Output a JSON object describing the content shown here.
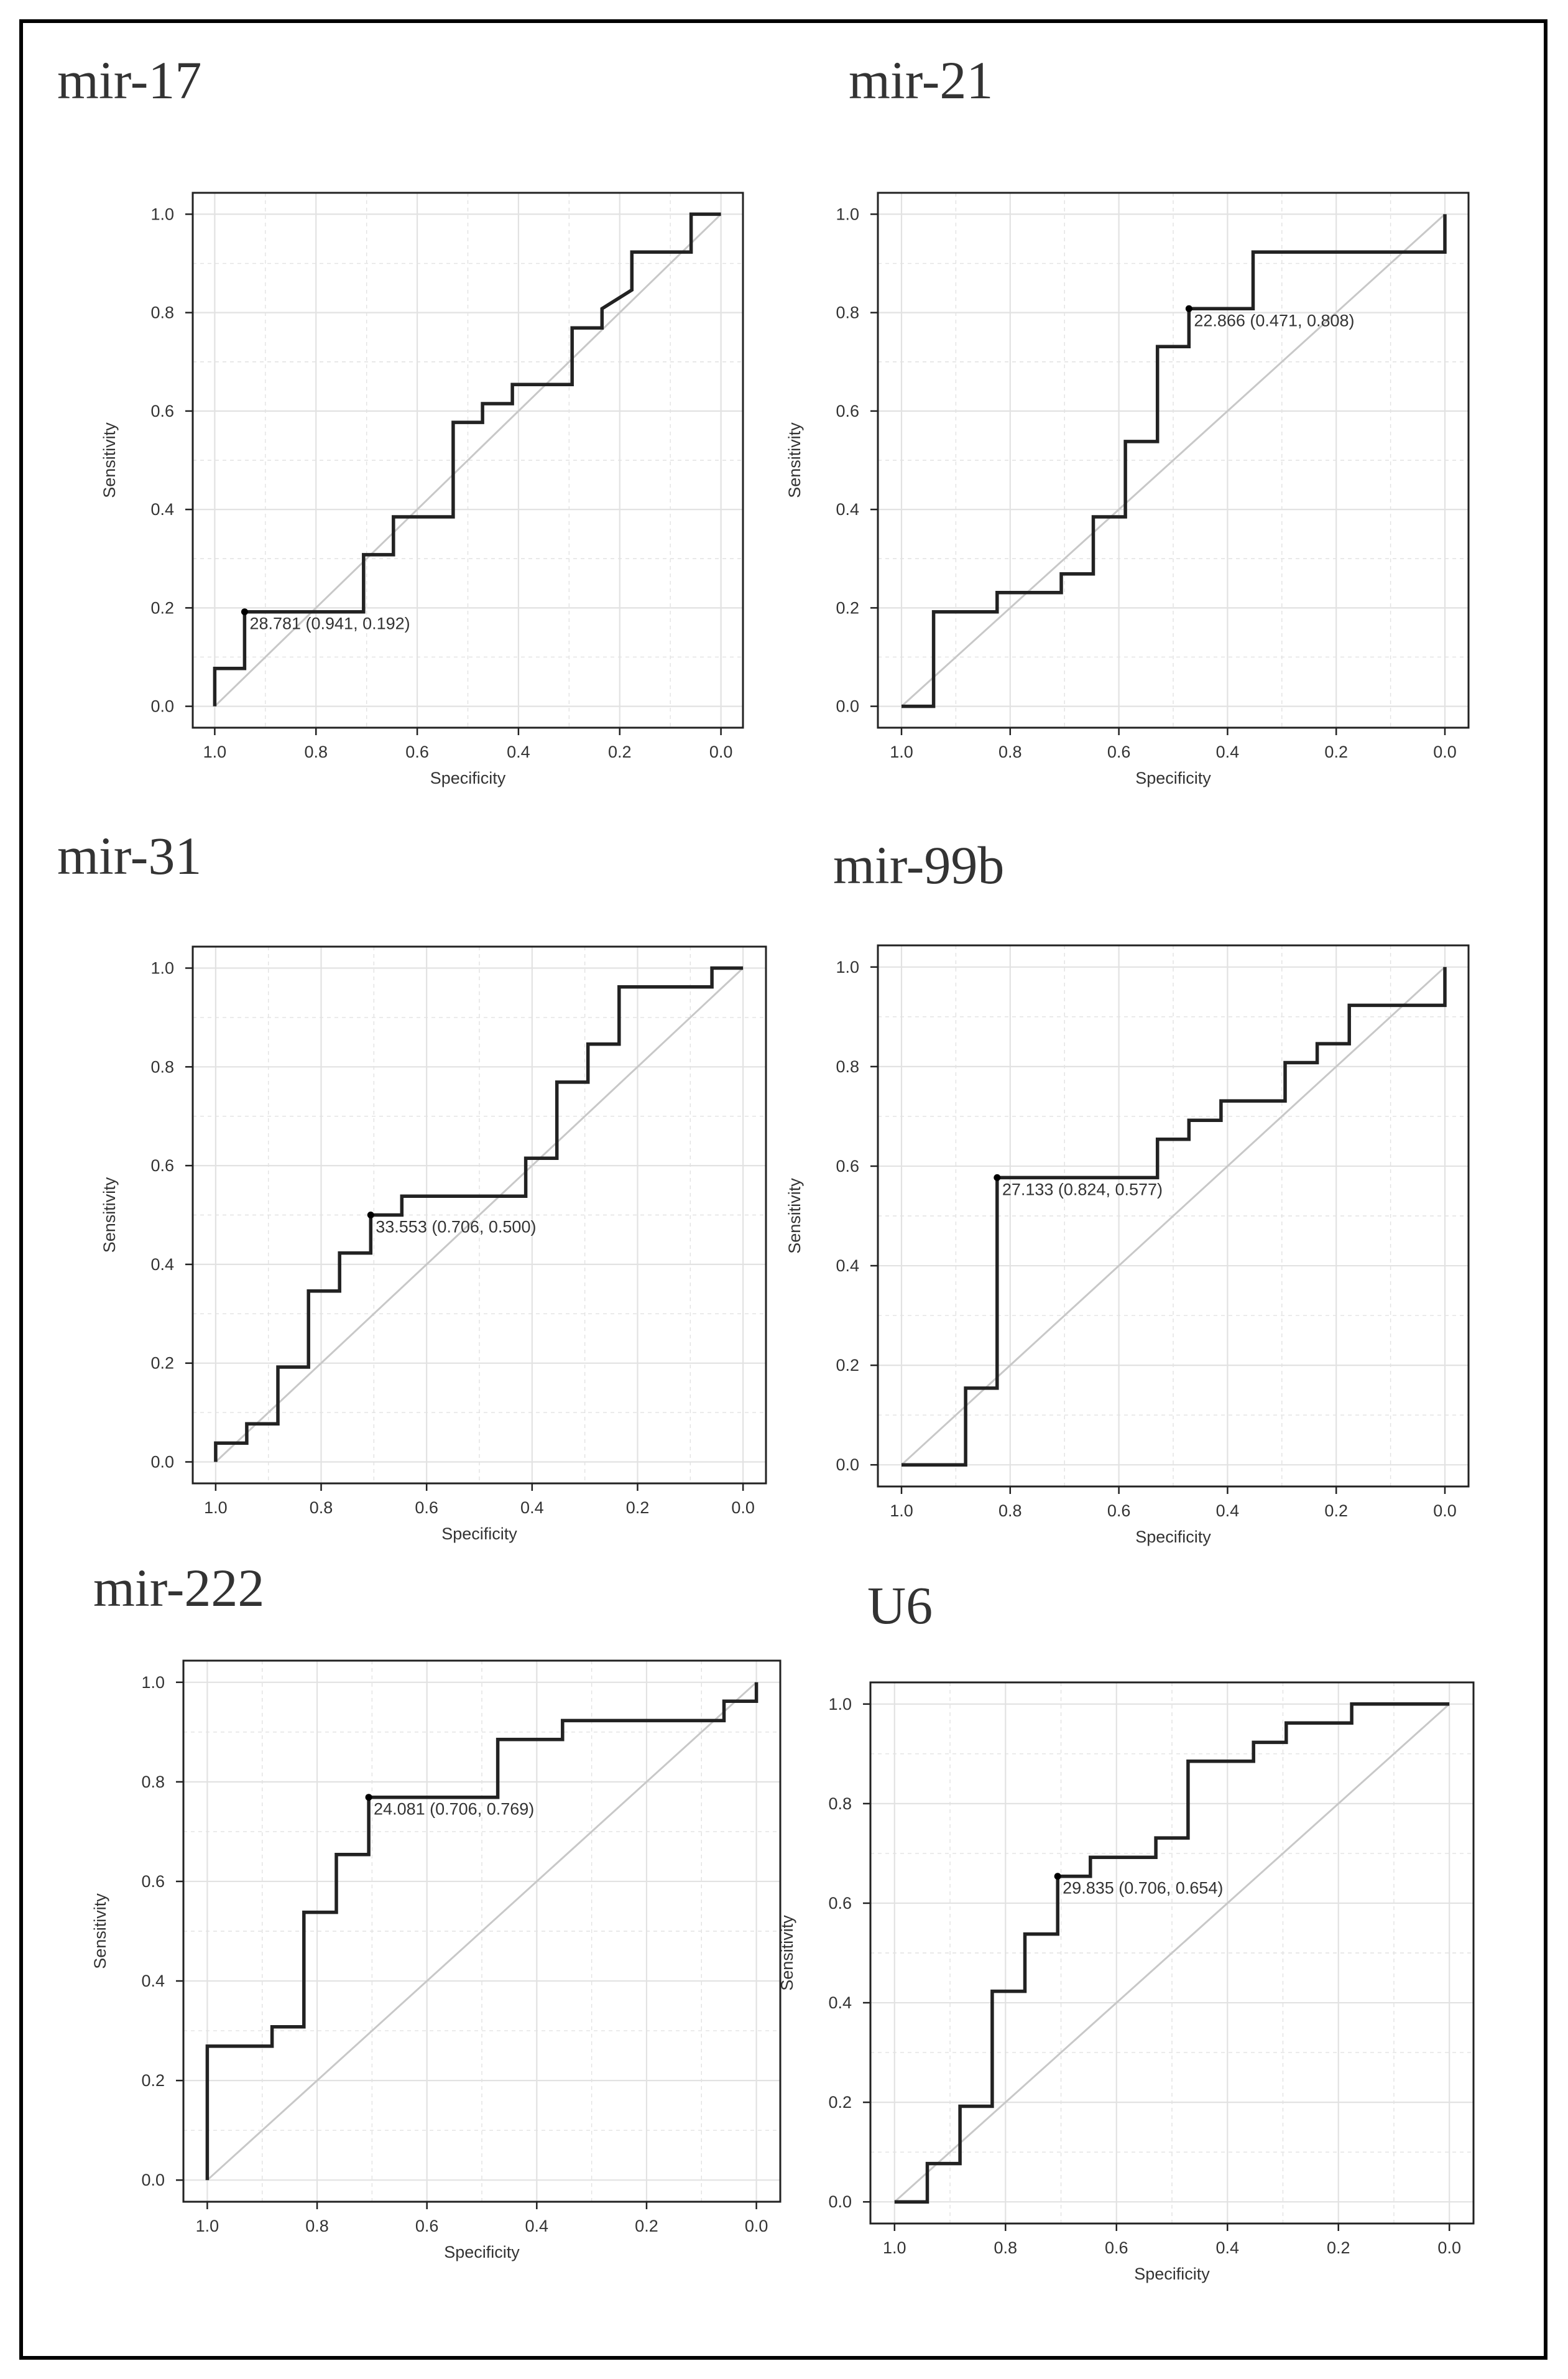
{
  "figure": {
    "panels": [
      {
        "id": "mir-17",
        "title": "mir-17"
      },
      {
        "id": "mir-21",
        "title": "mir-21"
      },
      {
        "id": "mir-31",
        "title": "mir-31"
      },
      {
        "id": "mir-99b",
        "title": "mir-99b"
      },
      {
        "id": "mir-222",
        "title": "mir-222"
      },
      {
        "id": "U6",
        "title": "U6"
      }
    ]
  },
  "chart_data": [
    {
      "type": "line",
      "title": "mir-17",
      "xlabel": "Specificity",
      "ylabel": "Sensitivity",
      "xlim": [
        1.0,
        0.0
      ],
      "ylim": [
        0.0,
        1.0
      ],
      "x_ticks": [
        "1.0",
        "0.8",
        "0.6",
        "0.4",
        "0.2",
        "0.0"
      ],
      "y_ticks": [
        "0.0",
        "0.2",
        "0.4",
        "0.6",
        "0.8",
        "1.0"
      ],
      "grid": true,
      "diagonal": true,
      "roc": {
        "specificity": [
          1.0,
          1.0,
          0.941,
          0.941,
          0.706,
          0.706,
          0.647,
          0.647,
          0.529,
          0.529,
          0.471,
          0.471,
          0.412,
          0.412,
          0.294,
          0.294,
          0.235,
          0.235,
          0.176,
          0.176,
          0.059,
          0.059,
          0.0
        ],
        "sensitivity": [
          0.0,
          0.077,
          0.077,
          0.192,
          0.192,
          0.308,
          0.308,
          0.385,
          0.385,
          0.577,
          0.577,
          0.615,
          0.615,
          0.654,
          0.654,
          0.769,
          0.769,
          0.808,
          0.846,
          0.923,
          0.923,
          1.0,
          1.0
        ]
      },
      "best_threshold": {
        "specificity": 0.941,
        "sensitivity": 0.192,
        "label": "28.781 (0.941, 0.192)"
      }
    },
    {
      "type": "line",
      "title": "mir-21",
      "xlabel": "Specificity",
      "ylabel": "Sensitivity",
      "xlim": [
        1.0,
        0.0
      ],
      "ylim": [
        0.0,
        1.0
      ],
      "x_ticks": [
        "1.0",
        "0.8",
        "0.6",
        "0.4",
        "0.2",
        "0.0"
      ],
      "y_ticks": [
        "0.0",
        "0.2",
        "0.4",
        "0.6",
        "0.8",
        "1.0"
      ],
      "grid": true,
      "diagonal": true,
      "roc": {
        "specificity": [
          1.0,
          0.941,
          0.941,
          0.824,
          0.824,
          0.706,
          0.706,
          0.647,
          0.647,
          0.588,
          0.588,
          0.529,
          0.529,
          0.471,
          0.471,
          0.353,
          0.353,
          0.0,
          0.0
        ],
        "sensitivity": [
          0.0,
          0.0,
          0.192,
          0.192,
          0.231,
          0.231,
          0.269,
          0.269,
          0.385,
          0.385,
          0.538,
          0.538,
          0.731,
          0.731,
          0.808,
          0.808,
          0.923,
          0.923,
          1.0
        ]
      },
      "best_threshold": {
        "specificity": 0.471,
        "sensitivity": 0.808,
        "label": "22.866 (0.471, 0.808)"
      }
    },
    {
      "type": "line",
      "title": "mir-31",
      "xlabel": "Specificity",
      "ylabel": "Sensitivity",
      "xlim": [
        1.0,
        0.0
      ],
      "ylim": [
        0.0,
        1.0
      ],
      "x_ticks": [
        "1.0",
        "0.8",
        "0.6",
        "0.4",
        "0.2",
        "0.0"
      ],
      "y_ticks": [
        "0.0",
        "0.2",
        "0.4",
        "0.6",
        "0.8",
        "1.0"
      ],
      "grid": true,
      "diagonal": true,
      "roc": {
        "specificity": [
          1.0,
          1.0,
          0.941,
          0.941,
          0.882,
          0.882,
          0.824,
          0.824,
          0.765,
          0.765,
          0.706,
          0.706,
          0.647,
          0.647,
          0.412,
          0.412,
          0.353,
          0.353,
          0.294,
          0.294,
          0.235,
          0.235,
          0.059,
          0.059,
          0.0
        ],
        "sensitivity": [
          0.0,
          0.038,
          0.038,
          0.077,
          0.077,
          0.192,
          0.192,
          0.346,
          0.346,
          0.423,
          0.423,
          0.5,
          0.5,
          0.538,
          0.538,
          0.615,
          0.615,
          0.769,
          0.769,
          0.846,
          0.846,
          0.962,
          0.962,
          1.0,
          1.0
        ]
      },
      "best_threshold": {
        "specificity": 0.706,
        "sensitivity": 0.5,
        "label": "33.553 (0.706, 0.500)"
      }
    },
    {
      "type": "line",
      "title": "mir-99b",
      "xlabel": "Specificity",
      "ylabel": "Sensitivity",
      "xlim": [
        1.0,
        0.0
      ],
      "ylim": [
        0.0,
        1.0
      ],
      "x_ticks": [
        "1.0",
        "0.8",
        "0.6",
        "0.4",
        "0.2",
        "0.0"
      ],
      "y_ticks": [
        "0.0",
        "0.2",
        "0.4",
        "0.6",
        "0.8",
        "1.0"
      ],
      "grid": true,
      "diagonal": true,
      "roc": {
        "specificity": [
          1.0,
          0.882,
          0.882,
          0.824,
          0.824,
          0.529,
          0.529,
          0.471,
          0.471,
          0.412,
          0.412,
          0.294,
          0.294,
          0.235,
          0.235,
          0.176,
          0.176,
          0.0,
          0.0
        ],
        "sensitivity": [
          0.0,
          0.0,
          0.154,
          0.154,
          0.577,
          0.577,
          0.654,
          0.654,
          0.692,
          0.692,
          0.731,
          0.731,
          0.808,
          0.808,
          0.846,
          0.846,
          0.923,
          0.923,
          1.0
        ]
      },
      "best_threshold": {
        "specificity": 0.824,
        "sensitivity": 0.577,
        "label": "27.133 (0.824, 0.577)"
      }
    },
    {
      "type": "line",
      "title": "mir-222",
      "xlabel": "Specificity",
      "ylabel": "Sensitivity",
      "xlim": [
        1.0,
        0.0
      ],
      "ylim": [
        0.0,
        1.0
      ],
      "x_ticks": [
        "1.0",
        "0.8",
        "0.6",
        "0.4",
        "0.2",
        "0.0"
      ],
      "y_ticks": [
        "0.0",
        "0.2",
        "0.4",
        "0.6",
        "0.8",
        "1.0"
      ],
      "grid": true,
      "diagonal": true,
      "roc": {
        "specificity": [
          1.0,
          1.0,
          0.882,
          0.882,
          0.824,
          0.824,
          0.765,
          0.765,
          0.706,
          0.706,
          0.471,
          0.471,
          0.353,
          0.353,
          0.059,
          0.059,
          0.0,
          0.0
        ],
        "sensitivity": [
          0.0,
          0.269,
          0.269,
          0.308,
          0.308,
          0.538,
          0.538,
          0.654,
          0.654,
          0.769,
          0.769,
          0.885,
          0.885,
          0.923,
          0.923,
          0.962,
          0.962,
          1.0
        ]
      },
      "best_threshold": {
        "specificity": 0.706,
        "sensitivity": 0.769,
        "label": "24.081 (0.706, 0.769)"
      }
    },
    {
      "type": "line",
      "title": "U6",
      "xlabel": "Specificity",
      "ylabel": "Sensitivity",
      "xlim": [
        1.0,
        0.0
      ],
      "ylim": [
        0.0,
        1.0
      ],
      "x_ticks": [
        "1.0",
        "0.8",
        "0.6",
        "0.4",
        "0.2",
        "0.0"
      ],
      "y_ticks": [
        "0.0",
        "0.2",
        "0.4",
        "0.6",
        "0.8",
        "1.0"
      ],
      "grid": true,
      "diagonal": true,
      "roc": {
        "specificity": [
          1.0,
          0.941,
          0.941,
          0.882,
          0.882,
          0.824,
          0.824,
          0.765,
          0.765,
          0.706,
          0.706,
          0.647,
          0.647,
          0.529,
          0.529,
          0.471,
          0.471,
          0.353,
          0.353,
          0.294,
          0.294,
          0.176,
          0.176,
          0.0
        ],
        "sensitivity": [
          0.0,
          0.0,
          0.077,
          0.077,
          0.192,
          0.192,
          0.423,
          0.423,
          0.538,
          0.538,
          0.654,
          0.654,
          0.692,
          0.692,
          0.731,
          0.731,
          0.885,
          0.885,
          0.923,
          0.923,
          0.962,
          0.962,
          1.0,
          1.0
        ]
      },
      "best_threshold": {
        "specificity": 0.706,
        "sensitivity": 0.654,
        "label": "29.835 (0.706, 0.654)"
      }
    }
  ]
}
